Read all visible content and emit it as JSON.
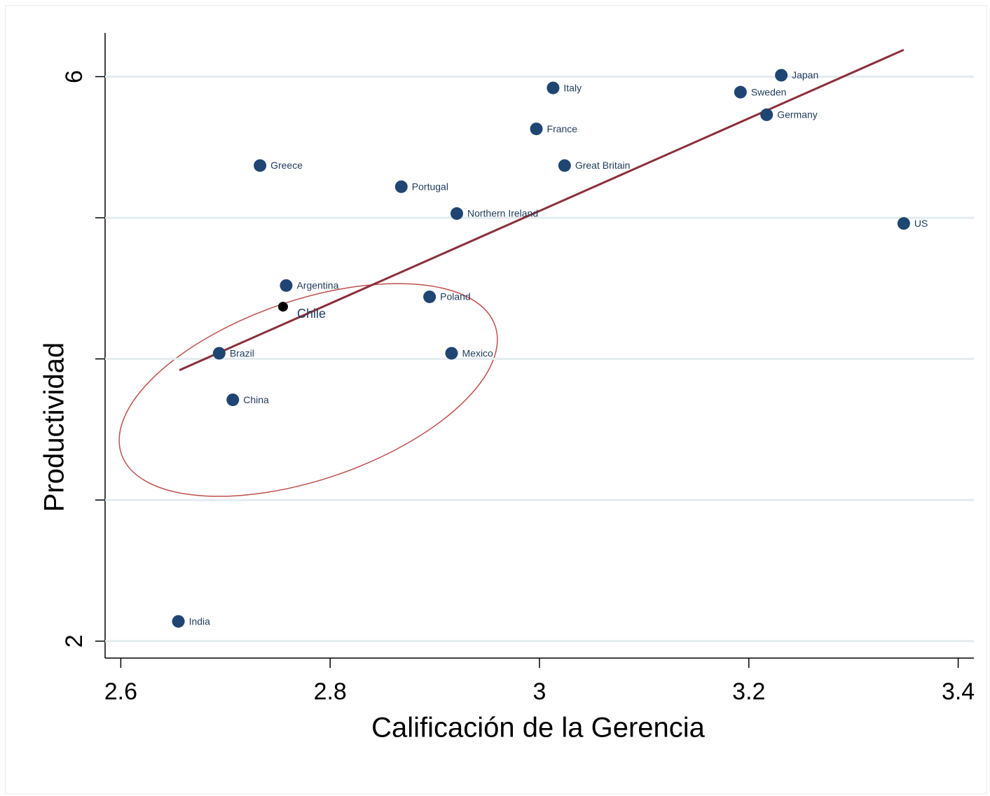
{
  "chart_data": {
    "type": "scatter",
    "x_label": "Calificación de la Gerencia",
    "y_label": "Productividad",
    "labels": [
      "Japan",
      "Italy",
      "Sweden",
      "Germany",
      "France",
      "Great Britain",
      "Greece",
      "Portugal",
      "Northern Ireland",
      "US",
      "Argentina",
      "Poland",
      "Chile",
      "Brazil",
      "Mexico",
      "China",
      "India"
    ],
    "x": [
      3.231,
      3.013,
      3.192,
      3.217,
      2.997,
      3.024,
      2.733,
      2.868,
      2.921,
      3.348,
      2.758,
      2.895,
      2.755,
      2.694,
      2.916,
      2.707,
      2.655
    ],
    "y": [
      6.01,
      5.92,
      5.89,
      5.73,
      5.63,
      5.37,
      5.37,
      5.22,
      5.03,
      4.96,
      4.52,
      4.44,
      4.37,
      4.04,
      4.04,
      3.71,
      2.14
    ],
    "colors": [
      "#1f4573",
      "#1f4573",
      "#1f4573",
      "#1f4573",
      "#1f4573",
      "#1f4573",
      "#1f4573",
      "#1f4573",
      "#1f4573",
      "#1f4573",
      "#1f4573",
      "#1f4573",
      "#000000",
      "#1f4573",
      "#1f4573",
      "#1f4573",
      "#1f4573"
    ],
    "fit_line": {
      "x": [
        2.656,
        3.348
      ],
      "y": [
        3.92,
        6.19
      ],
      "color": "#8b2f3a"
    },
    "xlim": [
      2.585,
      3.415
    ],
    "xticks": [
      2.6,
      2.8,
      3,
      3.2,
      3.4
    ],
    "ylim": [
      1.88,
      6.31
    ],
    "yticks": [
      2,
      3,
      4,
      5,
      6
    ],
    "ytick_labels": [
      2,
      null,
      null,
      null,
      6
    ],
    "grid": true
  }
}
